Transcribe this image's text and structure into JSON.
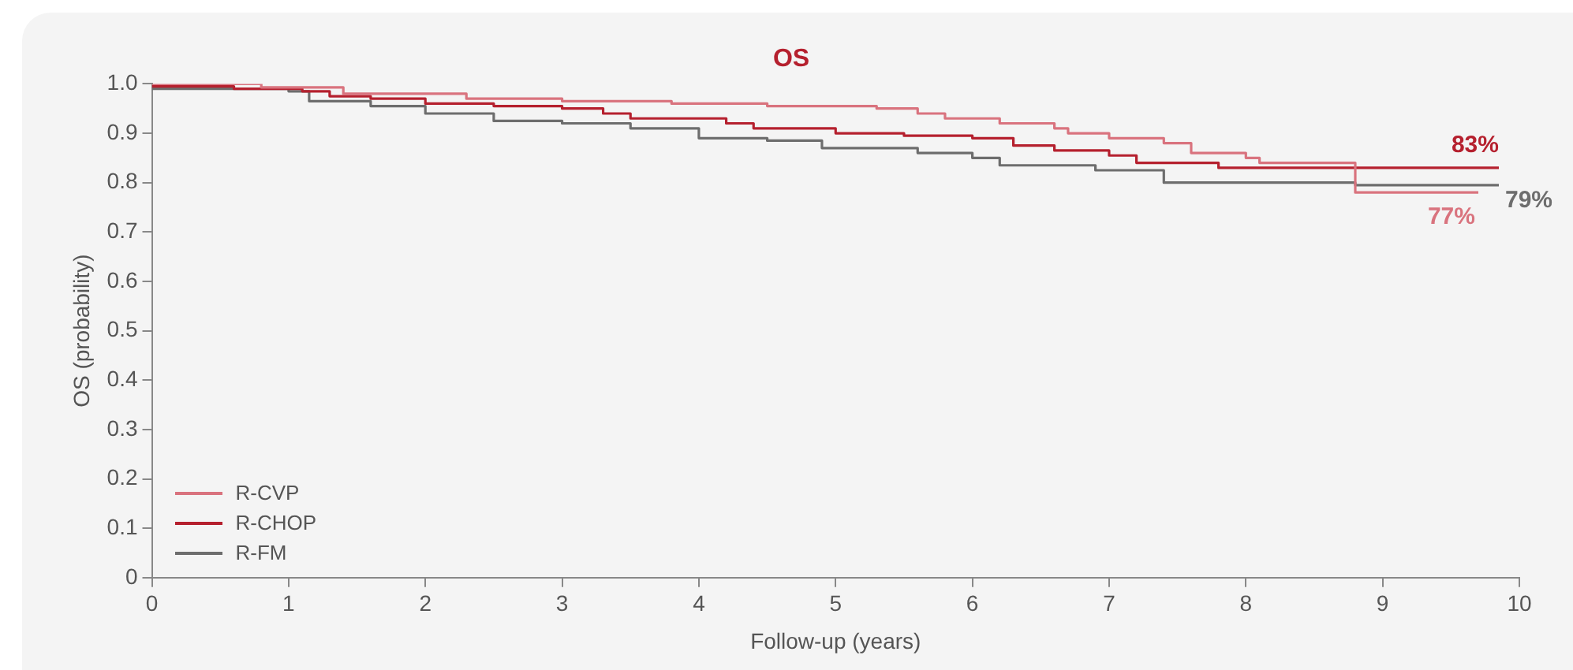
{
  "chart_data": {
    "type": "step",
    "title": "OS",
    "xlabel": "Follow-up (years)",
    "ylabel": "OS (probability)",
    "xlim": [
      0,
      10
    ],
    "xticks": [
      0,
      1,
      2,
      3,
      4,
      5,
      6,
      7,
      8,
      9,
      10
    ],
    "ylim": [
      0,
      1
    ],
    "yticks": [
      {
        "value": 0,
        "label": "0"
      },
      0.1,
      0.2,
      0.3,
      0.4,
      0.5,
      0.6,
      0.7,
      0.8,
      0.9,
      {
        "value": 1,
        "label": "1.0"
      }
    ],
    "grid": false,
    "legend": "bottom left",
    "marker": "none",
    "line_style": "solid",
    "series": [
      {
        "name": "R-CVP",
        "color": "#d9737e",
        "x": [
          0,
          0.8,
          1.4,
          2.3,
          3.0,
          3.8,
          4.5,
          5.3,
          5.6,
          5.8,
          6.2,
          6.6,
          6.7,
          7.0,
          7.4,
          7.6,
          8.0,
          8.1,
          8.8,
          9.7
        ],
        "values": [
          1.0,
          0.993,
          0.98,
          0.97,
          0.965,
          0.96,
          0.955,
          0.95,
          0.94,
          0.93,
          0.92,
          0.91,
          0.9,
          0.89,
          0.88,
          0.86,
          0.85,
          0.84,
          0.78,
          0.78
        ]
      },
      {
        "name": "R-CHOP",
        "color": "#b5202e",
        "x": [
          0,
          0.6,
          1.1,
          1.3,
          1.6,
          2.0,
          2.5,
          3.0,
          3.3,
          3.5,
          4.2,
          4.4,
          5.0,
          5.5,
          6.0,
          6.3,
          6.6,
          7.0,
          7.2,
          7.8,
          9.85
        ],
        "values": [
          0.995,
          0.99,
          0.985,
          0.975,
          0.97,
          0.96,
          0.955,
          0.95,
          0.94,
          0.93,
          0.92,
          0.91,
          0.9,
          0.895,
          0.89,
          0.875,
          0.865,
          0.855,
          0.84,
          0.83,
          0.83
        ]
      },
      {
        "name": "R-FM",
        "color": "#6d6d6d",
        "x": [
          0,
          1.0,
          1.15,
          1.6,
          2.0,
          2.5,
          3.0,
          3.5,
          4.0,
          4.5,
          4.9,
          5.6,
          6.0,
          6.2,
          6.9,
          7.4,
          8.8,
          9.85
        ],
        "values": [
          0.99,
          0.985,
          0.965,
          0.955,
          0.94,
          0.925,
          0.92,
          0.91,
          0.89,
          0.885,
          0.87,
          0.86,
          0.85,
          0.835,
          0.825,
          0.8,
          0.795,
          0.795
        ]
      }
    ],
    "annotations": [
      "77%",
      "83%",
      "79%"
    ]
  }
}
